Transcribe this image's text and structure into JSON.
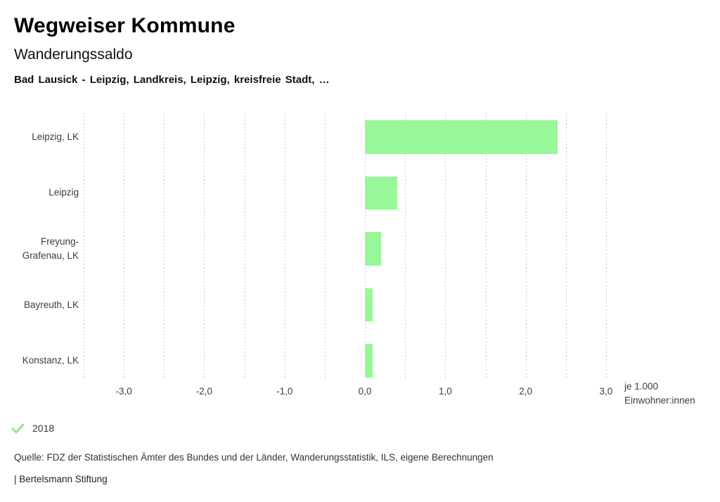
{
  "header": {
    "title": "Wegweiser Kommune",
    "subtitle": "Wanderungssaldo",
    "comparison": "Bad Lausick - Leipzig, Landkreis, Leipzig, kreisfreie Stadt, …"
  },
  "legend": {
    "year": "2018"
  },
  "footer": {
    "source": "Quelle: FDZ der Statistischen Ämter des Bundes und der Länder, Wanderungsstatistik, ILS, eigene Berechnungen",
    "branding": "| Bertelsmann Stiftung"
  },
  "colors": {
    "bar": "#98f798",
    "check": "#8fe88f",
    "grid": "#c9c9c9",
    "text": "#3c3c3c"
  },
  "chart_data": {
    "type": "bar",
    "orientation": "horizontal",
    "title": "Wanderungssaldo",
    "subtitle": "Bad Lausick - Leipzig, Landkreis, Leipzig, kreisfreie Stadt, …",
    "categories": [
      "Leipzig, LK",
      "Leipzig",
      "Freyung-Grafenau, LK",
      "Bayreuth, LK",
      "Konstanz, LK"
    ],
    "series": [
      {
        "name": "2018",
        "values": [
          2.4,
          0.4,
          0.2,
          0.1,
          0.1
        ]
      }
    ],
    "xlabel": "je 1.000 Einwohner:innen",
    "unit_label_lines": [
      "je 1.000",
      "Einwohner:innen"
    ],
    "xlim": [
      -3.5,
      3.5
    ],
    "gridline_values": [
      -3.5,
      -3,
      -2.5,
      -2,
      -1.5,
      -1,
      -0.5,
      0,
      0.5,
      1,
      1.5,
      2,
      2.5,
      3
    ],
    "tick_values": [
      -3,
      -2,
      -1,
      0,
      1,
      2,
      3
    ],
    "tick_labels": [
      "-3,0",
      "-2,0",
      "-1,0",
      "0,0",
      "1,0",
      "2,0",
      "3,0"
    ],
    "grid": true,
    "legend_position": "bottom-left"
  }
}
